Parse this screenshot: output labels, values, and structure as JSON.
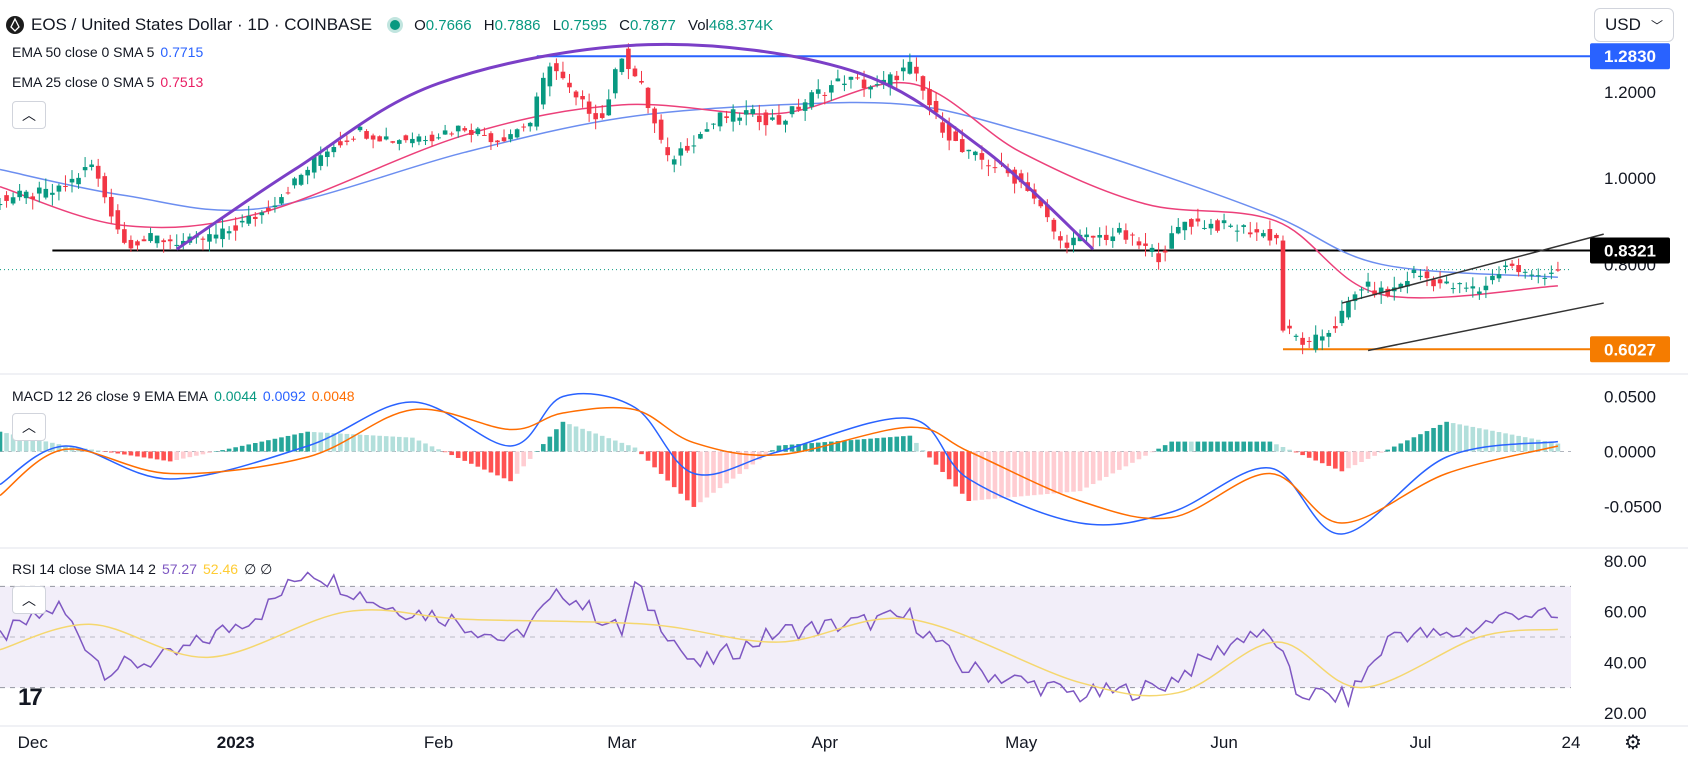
{
  "header": {
    "symbol_title": "EOS / United States Dollar · 1D · COINBASE",
    "open_label": "O",
    "open": "0.7666",
    "high_label": "H",
    "high": "0.7886",
    "low_label": "L",
    "low": "0.7595",
    "close_label": "C",
    "close": "0.7877",
    "volume_label": "Vol",
    "volume": "468.374K",
    "currency": "USD",
    "status_color": "#089981"
  },
  "legends": {
    "ema50": {
      "label": "EMA 50 close 0 SMA 5",
      "value": "0.7715",
      "color": "#2962ff"
    },
    "ema25": {
      "label": "EMA 25 close 0 SMA 5",
      "value": "0.7513",
      "color": "#e91e63"
    },
    "macd": {
      "label": "MACD 12 26 close 9 EMA EMA",
      "v1": "0.0044",
      "v2": "0.0092",
      "v3": "0.0048",
      "c1": "#089981",
      "c2": "#2962ff",
      "c3": "#ff6d00"
    },
    "rsi": {
      "label": "RSI 14 close SMA 14 2",
      "v1": "57.27",
      "v2": "52.46",
      "v3": "∅ ∅",
      "c1": "#7e57c2",
      "c2": "#ffcc33"
    }
  },
  "collapse_icon": "chevron-up-icon",
  "colors": {
    "up": "#089981",
    "down": "#f23645",
    "grid_text": "#131722",
    "ema50": "#6c8ef0",
    "ema25": "#ec407a",
    "arc": "#7b3fc7"
  },
  "chart_data": [
    {
      "type": "candlestick",
      "title": "EOS / United States Dollar · 1D · COINBASE",
      "x_ticks": [
        "Dec",
        "2023",
        "Feb",
        "Mar",
        "Apr",
        "May",
        "Jun",
        "Jul",
        "24"
      ],
      "y_ticks": [
        "1.2000",
        "1.0000",
        "0.8000"
      ],
      "y_range": [
        0.55,
        1.33
      ],
      "price_labels": [
        {
          "value": 1.283,
          "text": "1.2830",
          "color": "#2962ff"
        },
        {
          "value": 0.8321,
          "text": "0.8321",
          "color": "#000000"
        },
        {
          "value": 0.6027,
          "text": "0.6027",
          "color": "#f57c00"
        }
      ],
      "levels": [
        {
          "value": 1.283,
          "from_date": "2023-02-16",
          "color": "#2962ff"
        },
        {
          "value": 0.8321,
          "from_date": "2022-12-04",
          "color": "#000000"
        },
        {
          "value": 0.6027,
          "from_date": "2023-06-10",
          "color": "#f57c00"
        }
      ],
      "close_series": {
        "dates": [
          "2022-11-26",
          "2022-12-05",
          "2022-12-10",
          "2022-12-15",
          "2022-12-20",
          "2022-12-25",
          "2022-12-30",
          "2023-01-05",
          "2023-01-10",
          "2023-01-15",
          "2023-01-20",
          "2023-01-25",
          "2023-01-31",
          "2023-02-05",
          "2023-02-10",
          "2023-02-15",
          "2023-02-18",
          "2023-02-22",
          "2023-02-26",
          "2023-03-01",
          "2023-03-04",
          "2023-03-08",
          "2023-03-12",
          "2023-03-16",
          "2023-03-20",
          "2023-03-25",
          "2023-03-30",
          "2023-04-04",
          "2023-04-09",
          "2023-04-14",
          "2023-04-18",
          "2023-04-22",
          "2023-04-27",
          "2023-05-02",
          "2023-05-07",
          "2023-05-11",
          "2023-05-16",
          "2023-05-22",
          "2023-05-26",
          "2023-05-31",
          "2023-06-05",
          "2023-06-09",
          "2023-06-10",
          "2023-06-14",
          "2023-06-18",
          "2023-06-22",
          "2023-06-26",
          "2023-06-30",
          "2023-07-05",
          "2023-07-10",
          "2023-07-14",
          "2023-07-18",
          "2023-07-22"
        ],
        "values": [
          0.95,
          0.97,
          1.03,
          0.85,
          0.86,
          0.85,
          0.87,
          0.92,
          0.99,
          1.07,
          1.11,
          1.09,
          1.1,
          1.12,
          1.09,
          1.13,
          1.27,
          1.18,
          1.14,
          1.29,
          1.21,
          1.04,
          1.09,
          1.14,
          1.15,
          1.13,
          1.19,
          1.23,
          1.21,
          1.26,
          1.14,
          1.06,
          1.03,
          0.98,
          0.85,
          0.86,
          0.87,
          0.82,
          0.9,
          0.89,
          0.88,
          0.86,
          0.65,
          0.61,
          0.66,
          0.75,
          0.73,
          0.78,
          0.75,
          0.74,
          0.8,
          0.77,
          0.79
        ]
      },
      "ema50": {
        "dates": [
          "2022-11-26",
          "2022-12-15",
          "2023-01-05",
          "2023-02-05",
          "2023-03-01",
          "2023-03-25",
          "2023-04-14",
          "2023-05-01",
          "2023-05-20",
          "2023-06-09",
          "2023-06-25",
          "2023-07-22"
        ],
        "values": [
          1.02,
          0.96,
          0.93,
          1.06,
          1.14,
          1.17,
          1.17,
          1.11,
          1.02,
          0.91,
          0.8,
          0.77
        ]
      },
      "ema25": {
        "dates": [
          "2022-11-26",
          "2022-12-15",
          "2023-01-05",
          "2023-02-05",
          "2023-03-01",
          "2023-03-25",
          "2023-04-14",
          "2023-05-01",
          "2023-05-20",
          "2023-06-09",
          "2023-06-25",
          "2023-07-22"
        ],
        "values": [
          0.98,
          0.89,
          0.92,
          1.1,
          1.17,
          1.15,
          1.22,
          1.06,
          0.94,
          0.9,
          0.73,
          0.75
        ]
      },
      "arc_points": {
        "dates": [
          "2022-12-23",
          "2023-01-10",
          "2023-02-01",
          "2023-03-05",
          "2023-04-05",
          "2023-04-25",
          "2023-05-12"
        ],
        "values": [
          0.835,
          1.02,
          1.22,
          1.31,
          1.25,
          1.07,
          0.835
        ]
      },
      "wedge_upper": {
        "dates": [
          "2023-06-19",
          "2023-07-29"
        ],
        "values": [
          0.71,
          0.87
        ]
      },
      "wedge_lower": {
        "dates": [
          "2023-06-23",
          "2023-07-29"
        ],
        "values": [
          0.6,
          0.71
        ]
      }
    },
    {
      "type": "line",
      "title": "MACD 12 26 close 9 EMA EMA",
      "y_ticks": [
        "0.0500",
        "0.0000",
        "-0.0500"
      ],
      "y_range": [
        -0.085,
        0.065
      ],
      "macd_line": {
        "dates": [
          "2022-11-26",
          "2022-12-06",
          "2022-12-22",
          "2023-01-12",
          "2023-01-28",
          "2023-02-12",
          "2023-02-20",
          "2023-03-03",
          "2023-03-12",
          "2023-03-25",
          "2023-04-14",
          "2023-04-23",
          "2023-05-10",
          "2023-05-24",
          "2023-06-08",
          "2023-06-19",
          "2023-07-05",
          "2023-07-22"
        ],
        "values": [
          -0.03,
          0.005,
          -0.025,
          0.005,
          0.045,
          0.005,
          0.05,
          0.04,
          -0.02,
          0.0,
          0.03,
          -0.025,
          -0.065,
          -0.055,
          -0.015,
          -0.075,
          -0.005,
          0.009
        ]
      },
      "signal_line": {
        "dates": [
          "2022-11-26",
          "2022-12-06",
          "2022-12-22",
          "2023-01-12",
          "2023-01-28",
          "2023-02-12",
          "2023-02-20",
          "2023-03-03",
          "2023-03-12",
          "2023-03-25",
          "2023-04-14",
          "2023-04-23",
          "2023-05-10",
          "2023-05-24",
          "2023-06-08",
          "2023-06-19",
          "2023-07-05",
          "2023-07-22"
        ],
        "values": [
          -0.04,
          0.002,
          -0.02,
          -0.005,
          0.038,
          0.02,
          0.035,
          0.038,
          0.008,
          -0.003,
          0.022,
          0.0,
          -0.045,
          -0.06,
          -0.02,
          -0.065,
          -0.02,
          0.005
        ]
      }
    },
    {
      "type": "line",
      "title": "RSI 14 close SMA 14 2",
      "y_ticks": [
        "80.00",
        "60.00",
        "40.00",
        "20.00"
      ],
      "y_range": [
        18,
        82
      ],
      "band": [
        30,
        70
      ],
      "rsi_line": {
        "dates": [
          "2022-11-26",
          "2022-12-05",
          "2022-12-12",
          "2022-12-22",
          "2023-01-05",
          "2023-01-12",
          "2023-01-24",
          "2023-02-02",
          "2023-02-12",
          "2023-02-20",
          "2023-03-01",
          "2023-03-03",
          "2023-03-12",
          "2023-03-25",
          "2023-04-14",
          "2023-04-22",
          "2023-05-10",
          "2023-05-22",
          "2023-06-05",
          "2023-06-09",
          "2023-06-12",
          "2023-06-20",
          "2023-06-27",
          "2023-07-05",
          "2023-07-16",
          "2023-07-22"
        ],
        "values": [
          50,
          62,
          37,
          42,
          60,
          77,
          62,
          58,
          48,
          68,
          52,
          70,
          38,
          52,
          58,
          38,
          27,
          30,
          52,
          48,
          28,
          26,
          52,
          50,
          60,
          57
        ]
      },
      "rsi_ma": {
        "dates": [
          "2022-11-26",
          "2022-12-10",
          "2022-12-28",
          "2023-01-18",
          "2023-02-05",
          "2023-03-05",
          "2023-03-25",
          "2023-04-14",
          "2023-05-10",
          "2023-05-25",
          "2023-06-09",
          "2023-06-22",
          "2023-07-10",
          "2023-07-22"
        ],
        "values": [
          45,
          55,
          42,
          60,
          57,
          55,
          48,
          57,
          32,
          28,
          48,
          30,
          50,
          53
        ]
      }
    }
  ]
}
